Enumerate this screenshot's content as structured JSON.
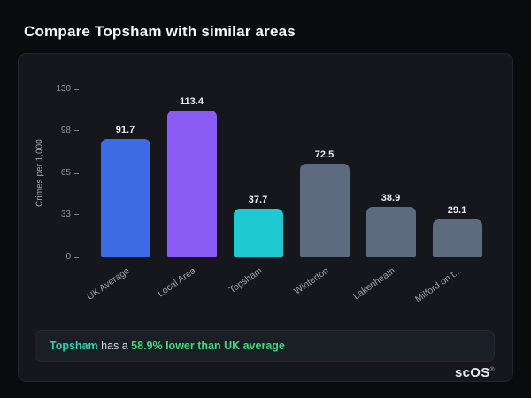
{
  "page": {
    "title": "Compare Topsham with similar areas"
  },
  "chart_data": {
    "type": "bar",
    "title": "",
    "categories": [
      "UK Average",
      "Local Area",
      "Topsham",
      "Winterton",
      "Lakenheath",
      "Milford on t..."
    ],
    "values": [
      91.7,
      113.4,
      37.7,
      72.5,
      38.9,
      29.1
    ],
    "bar_colors": [
      "#3d6be6",
      "#8a5cf5",
      "#1ec9d4",
      "#5d6b80",
      "#5d6b80",
      "#5d6b80"
    ],
    "ylabel": "Crimes per 1,000",
    "yticks": [
      0,
      33,
      65,
      98,
      130
    ],
    "ylim": [
      0,
      130
    ],
    "grid": false,
    "legend": false
  },
  "footer_note": {
    "subject": "Topsham",
    "connector": " has a ",
    "highlight": "58.9% lower than UK average"
  },
  "logo": {
    "text": "scOS",
    "registered_mark": "®"
  },
  "colors": {
    "subject_teal": "#2bd4b0",
    "highlight_green": "#41d97d",
    "card_bg": "#15171d",
    "page_bg": "#0a0b0e"
  }
}
